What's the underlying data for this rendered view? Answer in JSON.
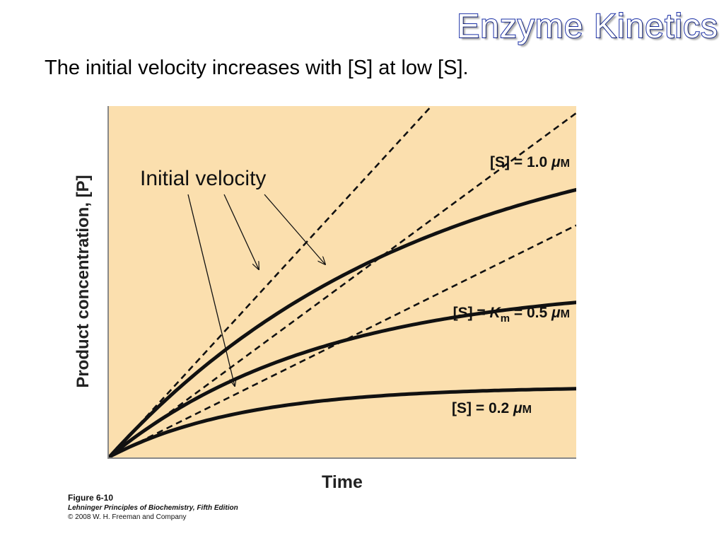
{
  "slide": {
    "title": "Enzyme Kinetics",
    "subtitle": "The initial velocity increases with [S] at low [S]."
  },
  "chart_data": {
    "type": "line",
    "xlabel": "Time",
    "ylabel": "Product concentration, [P]",
    "annotation": "Initial velocity",
    "series": [
      {
        "name": "[S] = 1.0 μM",
        "name_parts": {
          "pre": "[S] = 1.0 ",
          "unit_mu": "μ",
          "unit": "M"
        },
        "curve": {
          "pmax": 0.98,
          "k": 1.5
        },
        "tangent_slope": 1.45
      },
      {
        "name": "[S] = Km = 0.5 μM",
        "name_parts": {
          "pre": "[S] = ",
          "k_letter": "K",
          "k_sub": "m",
          "post": " = 0.5 ",
          "unit_mu": "μ",
          "unit": "M"
        },
        "curve": {
          "pmax": 0.495,
          "k": 2.2
        },
        "tangent_slope": 0.98
      },
      {
        "name": "[S] = 0.2 μM",
        "name_parts": {
          "pre": "[S] = 0.2 ",
          "unit_mu": "μ",
          "unit": "M"
        },
        "curve": {
          "pmax": 0.2,
          "k": 3.5
        },
        "tangent_slope": 0.66
      }
    ],
    "grid": false,
    "legend": "inline-right"
  },
  "caption": {
    "figure": "Figure 6-10",
    "source": "Lehninger Principles of Biochemistry, Fifth Edition",
    "copyright": "© 2008 W. H. Freeman and Company"
  },
  "colors": {
    "plot_background": "#fbdfae",
    "curve": "#111111",
    "title_outline": "#1a2fa6"
  }
}
